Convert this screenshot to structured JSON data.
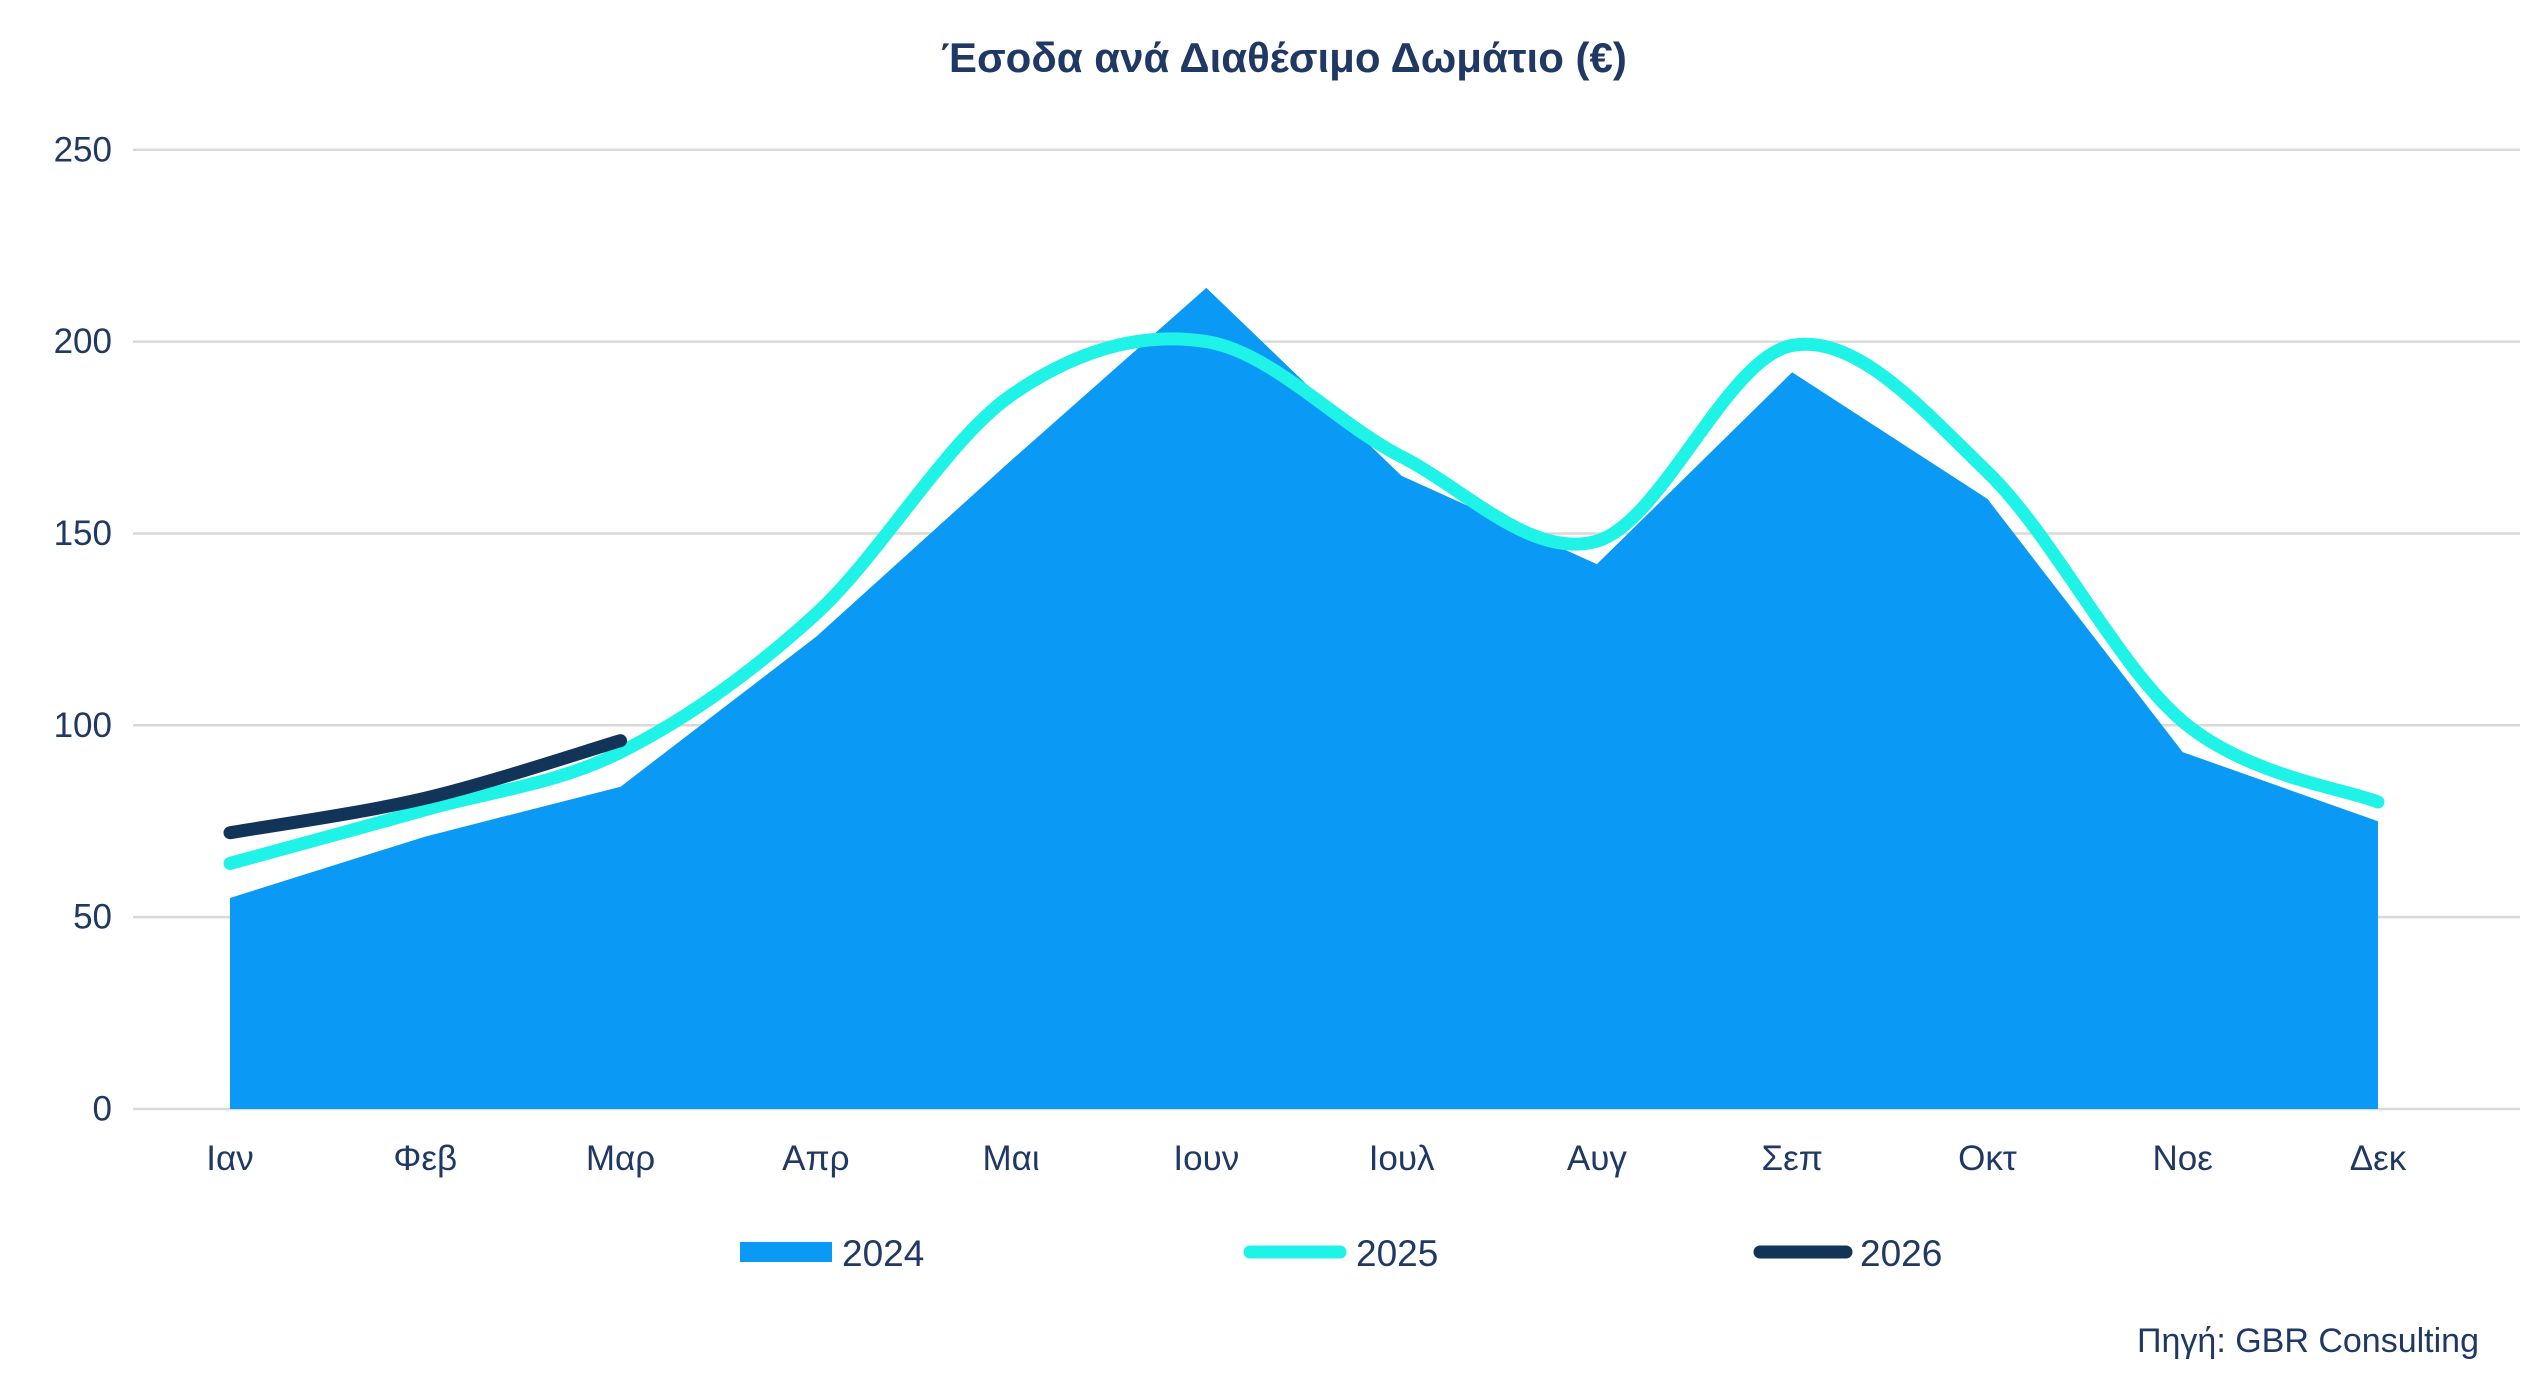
{
  "chart_data": {
    "type": "combo",
    "title": "Έσοδα ανά Διαθέσιμο Δωμάτιο (€)",
    "source": "Πηγή: GBR Consulting",
    "categories": [
      "Ιαν",
      "Φεβ",
      "Μαρ",
      "Απρ",
      "Μαι",
      "Ιουν",
      "Ιουλ",
      "Αυγ",
      "Σεπ",
      "Οκτ",
      "Νοε",
      "Δεκ"
    ],
    "y_ticks": [
      0,
      50,
      100,
      150,
      200,
      250
    ],
    "ylim": [
      0,
      250
    ],
    "grid": true,
    "legend_position": "bottom-center",
    "series": [
      {
        "name": "2024",
        "type": "area",
        "smooth": false,
        "color": "#0A99F5",
        "values": [
          55,
          71,
          84,
          123,
          169,
          214,
          165,
          142,
          192,
          159,
          93,
          75
        ]
      },
      {
        "name": "2025",
        "type": "line",
        "smooth": true,
        "color": "#1FF3E8",
        "values": [
          64,
          78,
          93,
          129,
          186,
          200,
          170,
          148,
          199,
          166,
          101,
          80
        ]
      },
      {
        "name": "2026",
        "type": "line",
        "smooth": true,
        "color": "#133459",
        "values": [
          72,
          81,
          96,
          null,
          null,
          null,
          null,
          null,
          null,
          null,
          null,
          null
        ]
      }
    ],
    "colors": {
      "text": "#1F3864",
      "grid": "#D9D9D9",
      "background": "#FFFFFF"
    }
  }
}
